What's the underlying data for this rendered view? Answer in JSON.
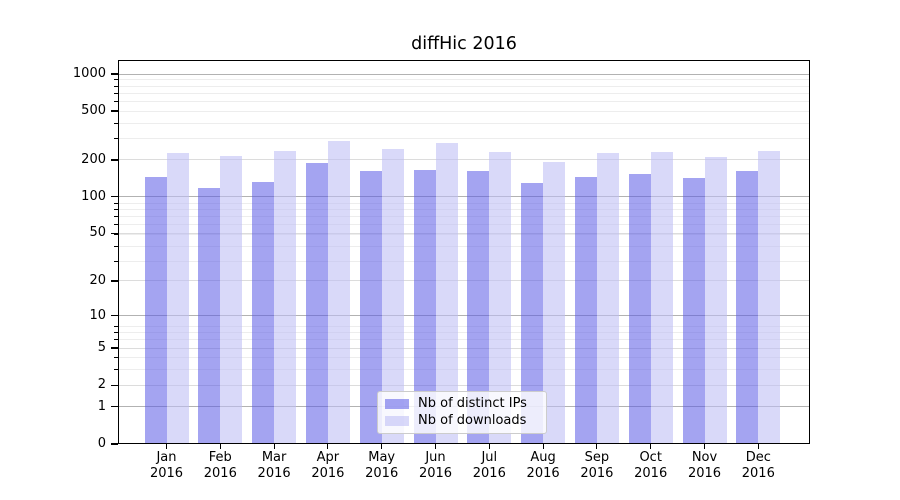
{
  "chart_data": {
    "type": "bar",
    "title": "diffHic 2016",
    "categories": [
      "Jan 2016",
      "Feb 2016",
      "Mar 2016",
      "Apr 2016",
      "May 2016",
      "Jun 2016",
      "Jul 2016",
      "Aug 2016",
      "Sep 2016",
      "Oct 2016",
      "Nov 2016",
      "Dec 2016"
    ],
    "series": [
      {
        "name": "Nb of distinct IPs",
        "fill": "rgba(90,90,230,0.55)",
        "approx_hex": "#a4a4f1",
        "values": [
          145,
          118,
          132,
          190,
          162,
          166,
          163,
          129,
          145,
          155,
          143,
          163
        ]
      },
      {
        "name": "Nb of downloads",
        "fill": "rgba(190,190,245,0.58)",
        "approx_hex": "#dadaf9",
        "values": [
          227,
          216,
          238,
          286,
          245,
          274,
          232,
          192,
          226,
          232,
          213,
          238
        ]
      }
    ],
    "y_axis": {
      "scale": "log1p",
      "ticks": [
        0,
        1,
        2,
        5,
        10,
        20,
        50,
        100,
        200,
        500,
        1000
      ],
      "range": [
        0,
        1000
      ]
    },
    "x_axis": {
      "label": "",
      "tick_style": "two-line month/year"
    },
    "legend": {
      "position": "lower center"
    },
    "grid": true,
    "colors": {
      "grid_decade": "#b2b2b2",
      "grid_major": "#dcdcdc",
      "grid_minor": "#ededed",
      "axis": "#000000"
    }
  }
}
